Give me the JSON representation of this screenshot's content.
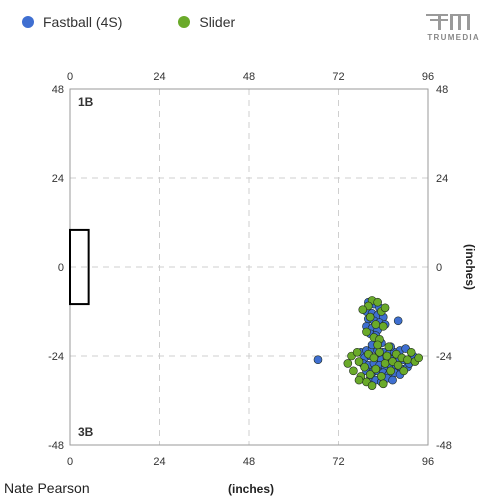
{
  "legend": [
    {
      "name": "Fastball (4S)",
      "color": "#3f6fd1"
    },
    {
      "name": "Slider",
      "color": "#6aaa2a"
    }
  ],
  "brand": {
    "name": "TRUMEDIA"
  },
  "player_name": "Nate Pearson",
  "x_axis_label": "(inches)",
  "y_axis_label": "(inches)",
  "corner_labels": {
    "top": "1B",
    "bottom": "3B"
  },
  "chart_data": {
    "type": "scatter",
    "title": "",
    "xlabel": "(inches)",
    "ylabel": "(inches)",
    "xlim": [
      0,
      96
    ],
    "ylim": [
      -48,
      48
    ],
    "xticks": [
      0,
      24,
      48,
      72,
      96
    ],
    "yticks": [
      -48,
      -24,
      0,
      24,
      48
    ],
    "grid": true,
    "legend_position": "top-left",
    "rubber": {
      "x": [
        0,
        5
      ],
      "y": [
        -10,
        10
      ]
    },
    "series": [
      {
        "name": "Fastball (4S)",
        "color": "#3f6fd1",
        "points": [
          [
            66.5,
            -25
          ],
          [
            80,
            -9.5
          ],
          [
            81.5,
            -10
          ],
          [
            83,
            -11
          ],
          [
            79.5,
            -12
          ],
          [
            81,
            -12.5
          ],
          [
            82.5,
            -13
          ],
          [
            84,
            -13.5
          ],
          [
            80,
            -14
          ],
          [
            81.5,
            -14.5
          ],
          [
            83,
            -15
          ],
          [
            84.5,
            -15.5
          ],
          [
            79.5,
            -16
          ],
          [
            81,
            -16.5
          ],
          [
            82.5,
            -17
          ],
          [
            80.5,
            -18
          ],
          [
            82,
            -18.5
          ],
          [
            88,
            -14.5
          ],
          [
            78,
            -23
          ],
          [
            79.5,
            -22.5
          ],
          [
            81,
            -22
          ],
          [
            82.5,
            -22.5
          ],
          [
            84,
            -23
          ],
          [
            85.5,
            -23.5
          ],
          [
            87,
            -23
          ],
          [
            88.5,
            -22.5
          ],
          [
            90,
            -22
          ],
          [
            79,
            -24.5
          ],
          [
            80.5,
            -24
          ],
          [
            82,
            -24.5
          ],
          [
            83.5,
            -25
          ],
          [
            85,
            -24.5
          ],
          [
            86.5,
            -25
          ],
          [
            88,
            -25.5
          ],
          [
            89.5,
            -25
          ],
          [
            78.5,
            -26
          ],
          [
            80,
            -26.5
          ],
          [
            81.5,
            -26
          ],
          [
            83,
            -26.5
          ],
          [
            84.5,
            -27
          ],
          [
            86,
            -26.5
          ],
          [
            87.5,
            -27
          ],
          [
            89,
            -27.5
          ],
          [
            90.5,
            -27
          ],
          [
            79.5,
            -28
          ],
          [
            81,
            -28.5
          ],
          [
            82.5,
            -28
          ],
          [
            84,
            -28.5
          ],
          [
            85.5,
            -29
          ],
          [
            87,
            -28.5
          ],
          [
            88.5,
            -29
          ],
          [
            80.5,
            -30
          ],
          [
            82,
            -30.5
          ],
          [
            83.5,
            -31
          ],
          [
            85,
            -30
          ],
          [
            86.5,
            -30.5
          ],
          [
            81,
            -21
          ],
          [
            83.5,
            -20.5
          ],
          [
            86,
            -21.5
          ],
          [
            91,
            -26
          ],
          [
            92,
            -24
          ]
        ]
      },
      {
        "name": "Slider",
        "color": "#6aaa2a",
        "points": [
          [
            81,
            -9
          ],
          [
            82.5,
            -9.5
          ],
          [
            80,
            -10.5
          ],
          [
            83.5,
            -12
          ],
          [
            80.5,
            -13.5
          ],
          [
            82,
            -15.5
          ],
          [
            84,
            -16
          ],
          [
            79.5,
            -17.5
          ],
          [
            81.5,
            -19
          ],
          [
            83,
            -19.5
          ],
          [
            78.5,
            -11.5
          ],
          [
            84.5,
            -11
          ],
          [
            74.5,
            -26
          ],
          [
            75.5,
            -24
          ],
          [
            76,
            -28
          ],
          [
            77,
            -23
          ],
          [
            77.5,
            -25.5
          ],
          [
            78,
            -29.5
          ],
          [
            79,
            -27
          ],
          [
            80,
            -23.5
          ],
          [
            80.5,
            -29
          ],
          [
            81.5,
            -24.5
          ],
          [
            82,
            -27.5
          ],
          [
            83,
            -23
          ],
          [
            83.5,
            -29.5
          ],
          [
            84.5,
            -26
          ],
          [
            85,
            -24
          ],
          [
            86,
            -28
          ],
          [
            86.5,
            -25.5
          ],
          [
            87.5,
            -23.5
          ],
          [
            88,
            -26.5
          ],
          [
            89,
            -24.5
          ],
          [
            89.5,
            -28
          ],
          [
            90.5,
            -25
          ],
          [
            91.5,
            -23
          ],
          [
            92.5,
            -25.5
          ],
          [
            93.5,
            -24.5
          ],
          [
            85.5,
            -21.5
          ],
          [
            82.5,
            -21
          ],
          [
            79.5,
            -31
          ],
          [
            84,
            -31.5
          ],
          [
            77.5,
            -30.5
          ],
          [
            81,
            -32
          ]
        ]
      }
    ]
  }
}
